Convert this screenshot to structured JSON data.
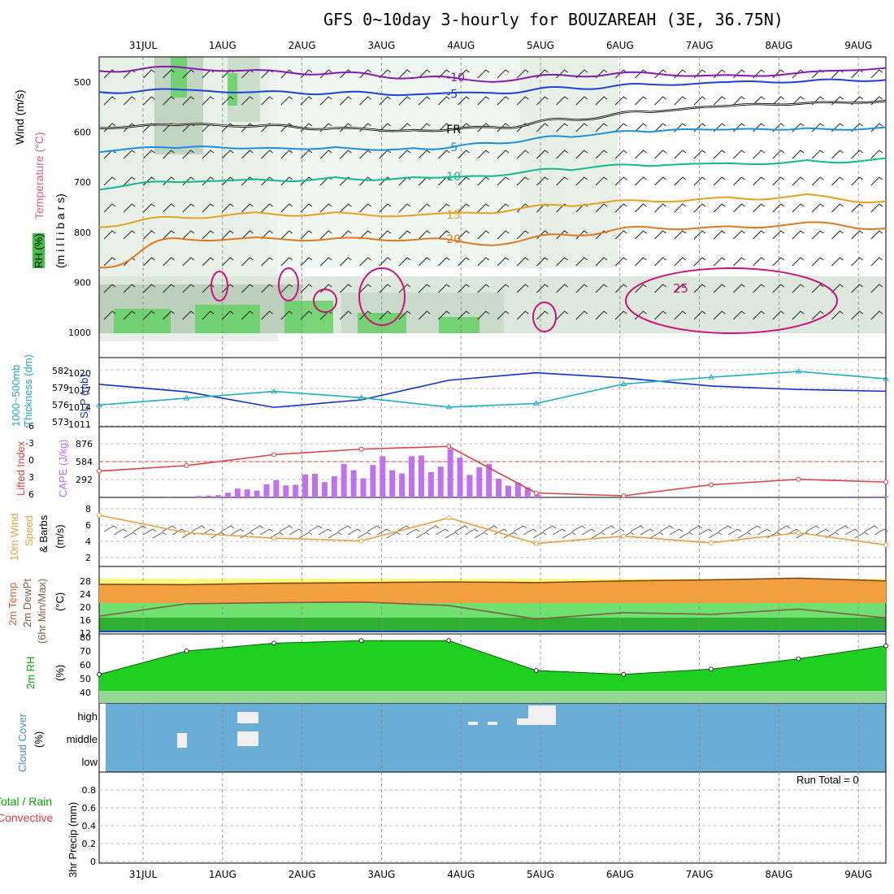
{
  "title": "GFS 0~10day 3-hourly for BOUZAREAH (3E, 36.75N)",
  "run_total_label": "Run Total = 0",
  "date_labels": [
    "31JUL",
    "1AUG",
    "2AUG",
    "3AUG",
    "4AUG",
    "5AUG",
    "6AUG",
    "7AUG",
    "8AUG",
    "9AUG"
  ],
  "panel_labels": {
    "upper_wind": "Wind (m/s)",
    "upper_temp": "Temperature (°C)",
    "upper_rh": "RH (%)",
    "upper_mb": "(m i l l i b a r s)",
    "thk": "Thickness (dm)",
    "thk2": "1000~500mb",
    "slp": "SLP (mb)",
    "li": "Lifted Index",
    "cape": "CAPE (J/kg)",
    "wind10": "10m Wind",
    "wind10b": "Speed",
    "wind10c": "& Barbs",
    "wind10u": "(m/s)",
    "temp2m": "2m Temp",
    "dew2m": "2m DewPt",
    "minmax": "(6hr Min/Max)",
    "tunit": "(°C)",
    "rh2m": "2m RH",
    "rhunit": "(%)",
    "cloud": "Cloud Cover",
    "cloudunit": "(%)",
    "precip": "3hr Precip (mm)",
    "total_rain": "Total / Rain",
    "convective": "Convective"
  },
  "chart_data": [
    {
      "type": "contour",
      "panel": "upper-air cross section",
      "ylabel": "millibars",
      "y_ticks": [
        500,
        600,
        700,
        800,
        900,
        1000
      ],
      "temperature_contours": [
        {
          "label": "-10",
          "color": "#8a18b0",
          "pressure": [
            478,
            470,
            476,
            482,
            492,
            500,
            488,
            482,
            486,
            480,
            472
          ]
        },
        {
          "label": "-5",
          "color": "#2040d8",
          "pressure": [
            520,
            515,
            520,
            522,
            525,
            522,
            512,
            505,
            500,
            498,
            496
          ]
        },
        {
          "label": "FR",
          "color": "#000000",
          "pressure": [
            592,
            586,
            588,
            592,
            596,
            590,
            575,
            560,
            548,
            542,
            538
          ]
        },
        {
          "label": "-5",
          "color": "#1890e0",
          "pressure": [
            640,
            632,
            632,
            630,
            632,
            622,
            610,
            600,
            595,
            592,
            590
          ]
        },
        {
          "label": "10",
          "color": "#10b890",
          "pressure": [
            715,
            700,
            694,
            690,
            690,
            688,
            676,
            668,
            662,
            656,
            652
          ]
        },
        {
          "label": "15",
          "color": "#e8a020",
          "pressure": [
            790,
            770,
            760,
            760,
            766,
            762,
            748,
            738,
            730,
            724,
            738
          ]
        },
        {
          "label": "20",
          "color": "#e07820",
          "pressure": [
            870,
            812,
            810,
            812,
            815,
            826,
            806,
            790,
            788,
            780,
            792
          ]
        }
      ],
      "labels_25": "25"
    },
    {
      "type": "line",
      "panel": "thickness-slp",
      "x": [
        "31JUL",
        "1AUG",
        "2AUG",
        "3AUG",
        "4AUG",
        "5AUG",
        "6AUG",
        "7AUG",
        "8AUG",
        "9AUG"
      ],
      "series": [
        {
          "name": "SLP (mb)",
          "color": "#1030d0",
          "values": [
            1017.5,
            1016.2,
            1013.5,
            1014.8,
            1018.2,
            1019.5,
            1018.6,
            1017.2,
            1016.6,
            1016.3
          ]
        },
        {
          "name": "Thickness (dm)",
          "color": "#20b0c0",
          "values": [
            576.2,
            577.5,
            578.8,
            577.6,
            575.8,
            576.5,
            580.2,
            581.5,
            582.6,
            581.2
          ]
        }
      ],
      "left_ticks": [
        573,
        576,
        579,
        582
      ],
      "right_ticks": [
        1011,
        1014,
        1017,
        1020
      ]
    },
    {
      "type": "bar",
      "panel": "cape-li",
      "x": [
        "31JUL",
        "1AUG",
        "2AUG",
        "3AUG",
        "4AUG",
        "5AUG",
        "6AUG",
        "7AUG",
        "8AUG",
        "9AUG"
      ],
      "cape_ticks": [
        292,
        584,
        876
      ],
      "li_ticks": [
        6,
        3,
        0,
        -3,
        -6
      ],
      "series": [
        {
          "name": "CAPE (J/kg)",
          "color": "#c070f0",
          "values": [
            0,
            25,
            330,
            640,
            780,
            0,
            0,
            0,
            10,
            20
          ]
        },
        {
          "name": "Lifted Index",
          "color": "#e04040",
          "values": [
            1.5,
            0.5,
            -1.5,
            -2.5,
            -3.0,
            5.5,
            6.0,
            4.0,
            3.0,
            3.5
          ]
        }
      ]
    },
    {
      "type": "line",
      "panel": "10m wind",
      "y_ticks": [
        2,
        4,
        6,
        8
      ],
      "series": [
        {
          "name": "10m Wind Speed",
          "color": "#e8a040",
          "values": [
            7.6,
            5.0,
            4.2,
            3.8,
            7.2,
            3.4,
            4.5,
            3.5,
            5.0,
            3.2
          ]
        }
      ]
    },
    {
      "type": "area",
      "panel": "2m temp dewpoint",
      "y_ticks": [
        12,
        16,
        20,
        24,
        28
      ],
      "series": [
        {
          "name": "2m Temp",
          "color": "#e08030",
          "values": [
            25.5,
            25.4,
            25.8,
            26.0,
            26.2,
            26.0,
            26.5,
            26.8,
            27.3,
            26.5
          ]
        },
        {
          "name": "2m DewPt",
          "color": "#806040",
          "values": [
            16.0,
            19.5,
            19.8,
            20.0,
            19.0,
            15.2,
            17.0,
            16.5,
            18.0,
            15.5
          ]
        }
      ]
    },
    {
      "type": "area",
      "panel": "2m rh",
      "y_ticks": [
        40,
        50,
        60,
        70,
        80
      ],
      "series": [
        {
          "name": "2m RH",
          "color": "#00c000",
          "values": [
            52,
            70,
            76,
            78,
            78,
            55,
            52,
            56,
            64,
            74
          ]
        }
      ]
    },
    {
      "type": "bar",
      "panel": "cloud cover",
      "y_labels": [
        "high",
        "middle",
        "low"
      ],
      "color": "#6aaed6"
    },
    {
      "type": "bar",
      "panel": "precip",
      "y_ticks": [
        0,
        0.2,
        0.4,
        0.6,
        0.8
      ],
      "values": [
        0,
        0,
        0,
        0,
        0,
        0,
        0,
        0,
        0,
        0
      ]
    }
  ]
}
